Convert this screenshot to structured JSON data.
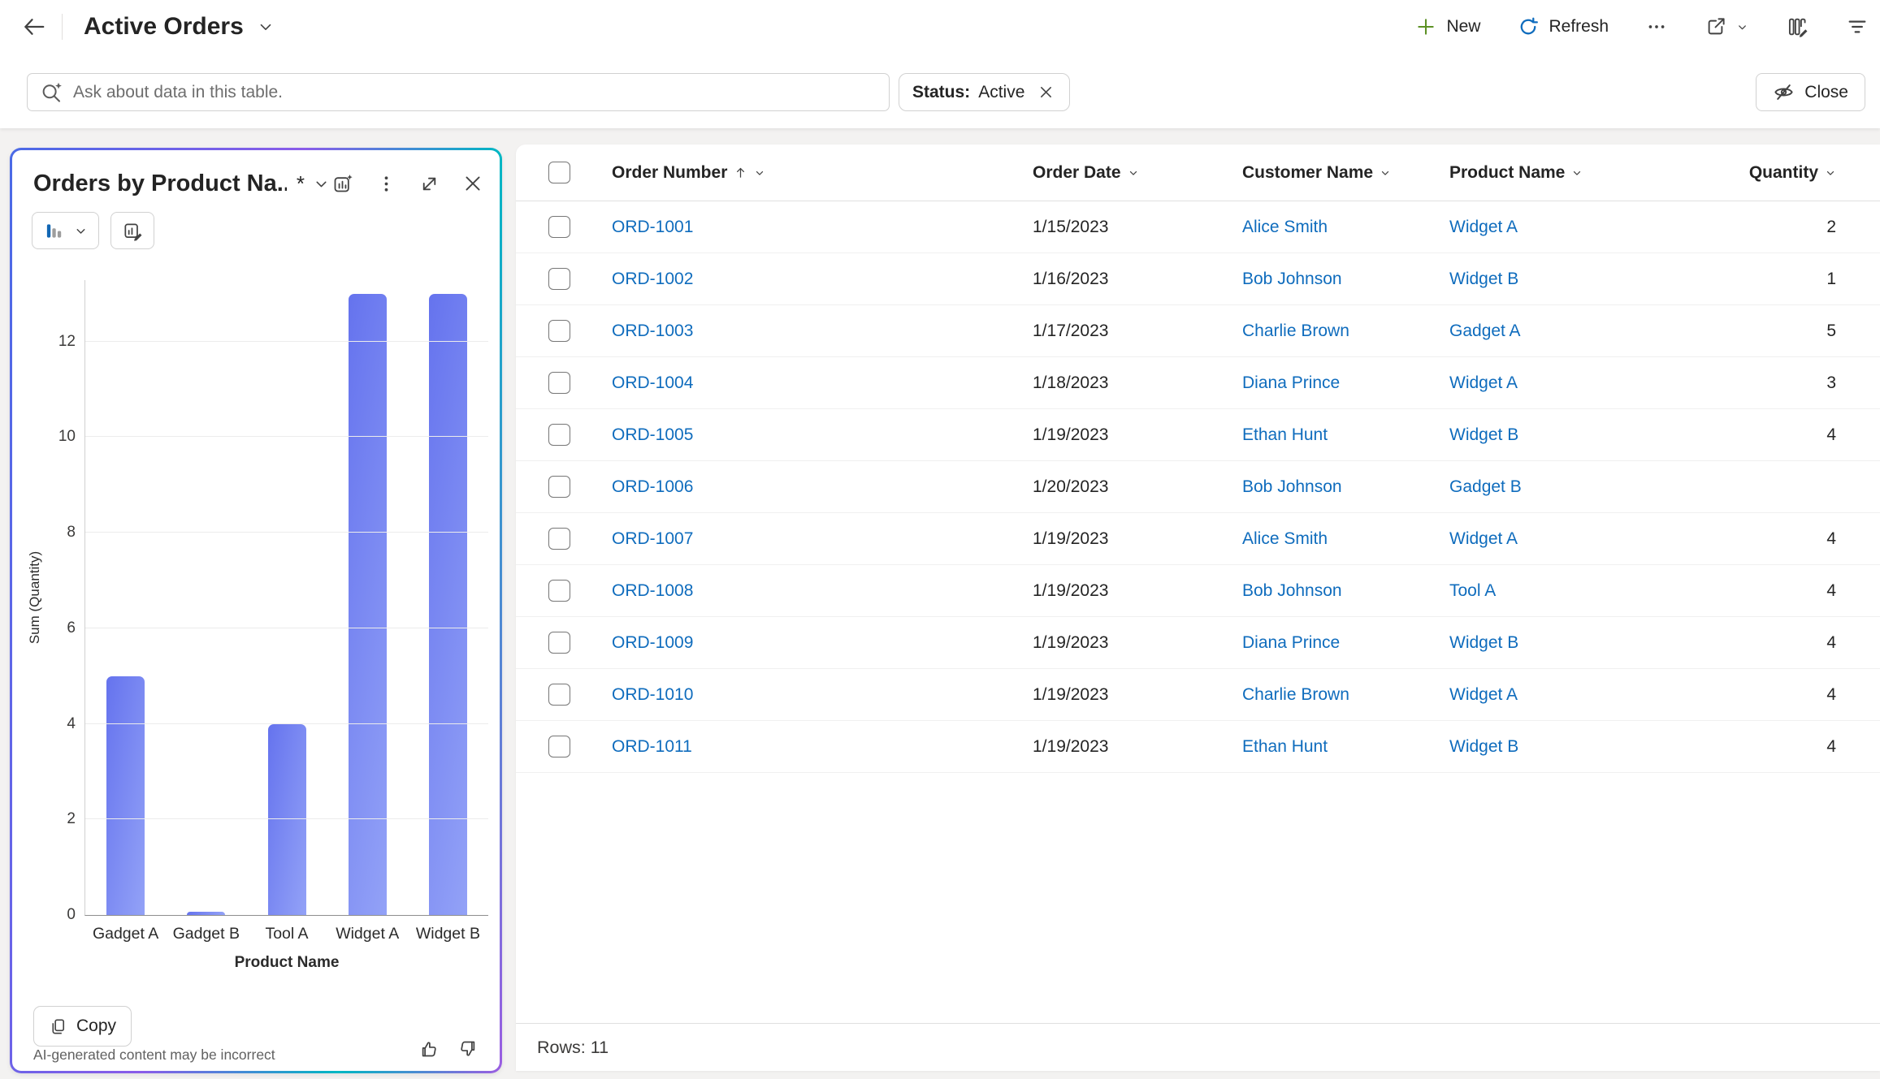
{
  "header": {
    "title": "Active Orders",
    "back_icon": "arrow-left-icon",
    "toolbar": {
      "new_label": "New",
      "refresh_label": "Refresh",
      "icons": [
        "plus-icon",
        "refresh-icon",
        "more-horizontal-icon",
        "share-icon",
        "edit-columns-icon",
        "filter-icon"
      ]
    }
  },
  "search": {
    "placeholder": "Ask about data in this table.",
    "icon": "search-sparkle-icon"
  },
  "filter_chip": {
    "label": "Status:",
    "value": "Active",
    "close_icon": "dismiss-icon"
  },
  "close_button": {
    "label": "Close",
    "icon": "eye-off-icon"
  },
  "chart_panel": {
    "title": "Orders by Product Na...",
    "modified_indicator": "*",
    "header_icons": [
      "chart-sparkle-icon",
      "kebab-menu-icon",
      "expand-icon",
      "close-icon"
    ],
    "type_buttons": [
      "bar-chart-type-icon",
      "edit-chart-icon"
    ],
    "copy_label": "Copy",
    "disclaimer": "AI-generated content may be incorrect",
    "feedback_icons": [
      "thumbs-up-icon",
      "thumbs-down-icon"
    ]
  },
  "chart_data": {
    "type": "bar",
    "title": "Orders by Product Na...",
    "categories": [
      "Gadget A",
      "Gadget B",
      "Tool A",
      "Widget A",
      "Widget B"
    ],
    "values": [
      5,
      0,
      4,
      13,
      13
    ],
    "xlabel": "Product Name",
    "ylabel": "Sum (Quantity)",
    "ylim": [
      0,
      13.3
    ],
    "yticks": [
      0,
      2,
      4,
      6,
      8,
      10,
      12
    ],
    "grid": true,
    "legend": "none",
    "bar_color_start": "#6573ee",
    "bar_color_end": "#93a2f7"
  },
  "table": {
    "columns": [
      {
        "label": "Order Number",
        "sorted_asc": true
      },
      {
        "label": "Order Date",
        "sorted_asc": false
      },
      {
        "label": "Customer Name",
        "sorted_asc": false
      },
      {
        "label": "Product Name",
        "sorted_asc": false
      },
      {
        "label": "Quantity",
        "sorted_asc": false
      }
    ],
    "rows": [
      {
        "order": "ORD-1001",
        "date": "1/15/2023",
        "customer": "Alice Smith",
        "product": "Widget A",
        "qty": "2"
      },
      {
        "order": "ORD-1002",
        "date": "1/16/2023",
        "customer": "Bob Johnson",
        "product": "Widget B",
        "qty": "1"
      },
      {
        "order": "ORD-1003",
        "date": "1/17/2023",
        "customer": "Charlie Brown",
        "product": "Gadget A",
        "qty": "5"
      },
      {
        "order": "ORD-1004",
        "date": "1/18/2023",
        "customer": "Diana Prince",
        "product": "Widget A",
        "qty": "3"
      },
      {
        "order": "ORD-1005",
        "date": "1/19/2023",
        "customer": "Ethan Hunt",
        "product": "Widget B",
        "qty": "4"
      },
      {
        "order": "ORD-1006",
        "date": "1/20/2023",
        "customer": "Bob Johnson",
        "product": "Gadget B",
        "qty": ""
      },
      {
        "order": "ORD-1007",
        "date": "1/19/2023",
        "customer": "Alice Smith",
        "product": "Widget A",
        "qty": "4"
      },
      {
        "order": "ORD-1008",
        "date": "1/19/2023",
        "customer": "Bob Johnson",
        "product": "Tool A",
        "qty": "4"
      },
      {
        "order": "ORD-1009",
        "date": "1/19/2023",
        "customer": "Diana Prince",
        "product": "Widget B",
        "qty": "4"
      },
      {
        "order": "ORD-1010",
        "date": "1/19/2023",
        "customer": "Charlie Brown",
        "product": "Widget A",
        "qty": "4"
      },
      {
        "order": "ORD-1011",
        "date": "1/19/2023",
        "customer": "Ethan Hunt",
        "product": "Widget B",
        "qty": "4"
      }
    ],
    "footer": "Rows: 11"
  },
  "colors": {
    "link_blue": "#0f6cbd",
    "new_plus_green": "#5c9124",
    "refresh_blue": "#0f6cbd",
    "panel_border_gradient": [
      "#4a6ae6",
      "#8a5ce9",
      "#00b7c3",
      "#9c5de2"
    ]
  }
}
